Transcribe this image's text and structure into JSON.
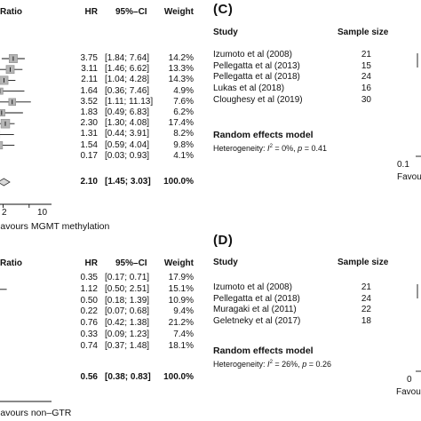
{
  "chart_data": [
    {
      "type": "table",
      "panel": "",
      "headers": {
        "effect": "Ratio",
        "hr": "HR",
        "ci": "95%–CI",
        "weight": "Weight"
      },
      "rows": [
        {
          "hr_text": "3.75",
          "ci_text": "[1.84; 7.64]",
          "weight_text": "14.2%",
          "hr": 3.75,
          "lo": 1.84,
          "hi": 7.64,
          "weight": 14.2
        },
        {
          "hr_text": "3.11",
          "ci_text": "[1.46; 6.62]",
          "weight_text": "13.3%",
          "hr": 3.11,
          "lo": 1.46,
          "hi": 6.62,
          "weight": 13.3
        },
        {
          "hr_text": "2.11",
          "ci_text": "[1.04; 4.28]",
          "weight_text": "14.3%",
          "hr": 2.11,
          "lo": 1.04,
          "hi": 4.28,
          "weight": 14.3
        },
        {
          "hr_text": "1.64",
          "ci_text": "[0.36; 7.46]",
          "weight_text": "4.9%",
          "hr": 1.64,
          "lo": 0.36,
          "hi": 7.46,
          "weight": 4.9
        },
        {
          "hr_text": "3.52",
          "ci_text": "[1.11; 11.13]",
          "weight_text": "7.6%",
          "hr": 3.52,
          "lo": 1.11,
          "hi": 11.13,
          "weight": 7.6
        },
        {
          "hr_text": "1.83",
          "ci_text": "[0.49; 6.83]",
          "weight_text": "6.2%",
          "hr": 1.83,
          "lo": 0.49,
          "hi": 6.83,
          "weight": 6.2
        },
        {
          "hr_text": "2.30",
          "ci_text": "[1.30; 4.08]",
          "weight_text": "17.4%",
          "hr": 2.3,
          "lo": 1.3,
          "hi": 4.08,
          "weight": 17.4
        },
        {
          "hr_text": "1.31",
          "ci_text": "[0.44; 3.91]",
          "weight_text": "8.2%",
          "hr": 1.31,
          "lo": 0.44,
          "hi": 3.91,
          "weight": 8.2
        },
        {
          "hr_text": "1.54",
          "ci_text": "[0.59; 4.04]",
          "weight_text": "9.8%",
          "hr": 1.54,
          "lo": 0.59,
          "hi": 4.04,
          "weight": 9.8
        },
        {
          "hr_text": "0.17",
          "ci_text": "[0.03; 0.93]",
          "weight_text": "4.1%",
          "hr": 0.17,
          "lo": 0.03,
          "hi": 0.93,
          "weight": 4.1
        }
      ],
      "pooled": {
        "hr_text": "2.10",
        "ci_text": "[1.45; 3.03]",
        "weight_text": "100.0%",
        "hr": 2.1,
        "lo": 1.45,
        "hi": 3.03
      },
      "axis": {
        "scale": "log",
        "ticks": [
          "2",
          "10"
        ],
        "tick_values": [
          2,
          10
        ],
        "xlim": [
          0.1,
          12
        ]
      },
      "favours_label": "Favours MGMT methylation"
    },
    {
      "type": "table",
      "panel": "(C)",
      "headers": {
        "study": "Study",
        "sample": "Sample size"
      },
      "rows": [
        {
          "study": "Izumoto et al (2008)",
          "n": "21"
        },
        {
          "study": "Pellegatta et al (2013)",
          "n": "15"
        },
        {
          "study": "Pellegatta et al (2018)",
          "n": "24"
        },
        {
          "study": "Lukas et al (2018)",
          "n": "16"
        },
        {
          "study": "Cloughesy et al (2019)",
          "n": "30"
        }
      ],
      "random_effects_label": "Random effects model",
      "heterogeneity": {
        "prefix": "Heterogeneity: ",
        "i": "I",
        "exp": "2",
        "rest": " = 0%, ",
        "p": "p",
        "p_rest": " = 0.41"
      },
      "axis": {
        "scale": "log",
        "ticks": [
          "0.1"
        ]
      },
      "favours_label": "Favours"
    },
    {
      "type": "table",
      "panel": "",
      "headers": {
        "effect": "Ratio",
        "hr": "HR",
        "ci": "95%–CI",
        "weight": "Weight"
      },
      "rows": [
        {
          "hr_text": "0.35",
          "ci_text": "[0.17; 0.71]",
          "weight_text": "17.9%",
          "hr": 0.35,
          "lo": 0.17,
          "hi": 0.71,
          "weight": 17.9
        },
        {
          "hr_text": "1.12",
          "ci_text": "[0.50; 2.51]",
          "weight_text": "15.1%",
          "hr": 1.12,
          "lo": 0.5,
          "hi": 2.51,
          "weight": 15.1
        },
        {
          "hr_text": "0.50",
          "ci_text": "[0.18; 1.39]",
          "weight_text": "10.9%",
          "hr": 0.5,
          "lo": 0.18,
          "hi": 1.39,
          "weight": 10.9
        },
        {
          "hr_text": "0.22",
          "ci_text": "[0.07; 0.68]",
          "weight_text": "9.4%",
          "hr": 0.22,
          "lo": 0.07,
          "hi": 0.68,
          "weight": 9.4
        },
        {
          "hr_text": "0.76",
          "ci_text": "[0.42; 1.38]",
          "weight_text": "21.2%",
          "hr": 0.76,
          "lo": 0.42,
          "hi": 1.38,
          "weight": 21.2
        },
        {
          "hr_text": "0.33",
          "ci_text": "[0.09; 1.23]",
          "weight_text": "7.4%",
          "hr": 0.33,
          "lo": 0.09,
          "hi": 1.23,
          "weight": 7.4
        },
        {
          "hr_text": "0.74",
          "ci_text": "[0.37; 1.48]",
          "weight_text": "18.1%",
          "hr": 0.74,
          "lo": 0.37,
          "hi": 1.48,
          "weight": 18.1
        }
      ],
      "pooled": {
        "hr_text": "0.56",
        "ci_text": "[0.38; 0.83]",
        "weight_text": "100.0%",
        "hr": 0.56,
        "lo": 0.38,
        "hi": 0.83
      },
      "favours_label": "Favours non–GTR"
    },
    {
      "type": "table",
      "panel": "(D)",
      "headers": {
        "study": "Study",
        "sample": "Sample size"
      },
      "rows": [
        {
          "study": "Izumoto et al (2008)",
          "n": "21"
        },
        {
          "study": "Pellegatta et al (2018)",
          "n": "24"
        },
        {
          "study": "Muragaki et al (2011)",
          "n": "22"
        },
        {
          "study": "Geletneky et al (2017)",
          "n": "18"
        }
      ],
      "random_effects_label": "Random effects model",
      "heterogeneity": {
        "prefix": "Heterogeneity: ",
        "i": "I",
        "exp": "2",
        "rest": " = 26%, ",
        "p": "p",
        "p_rest": " = 0.26"
      },
      "axis": {
        "ticks": [
          "0"
        ]
      },
      "favours_label": "Favours"
    }
  ]
}
